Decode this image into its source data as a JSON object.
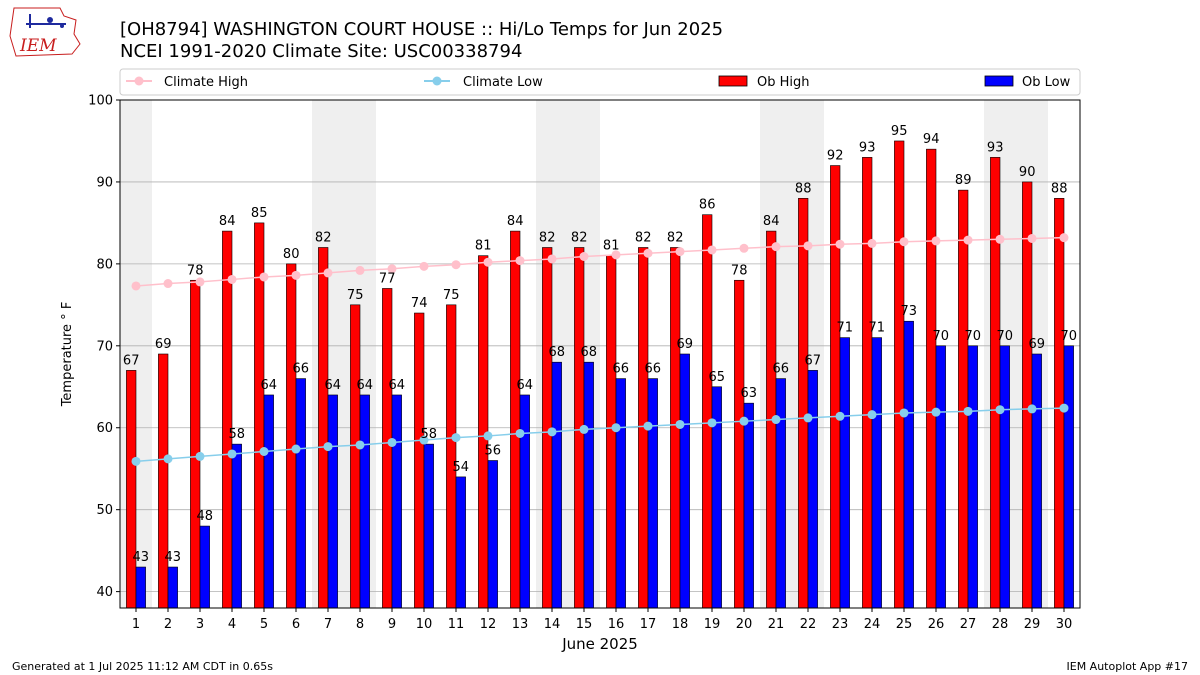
{
  "header": {
    "title_line1": "[OH8794] WASHINGTON COURT HOUSE :: Hi/Lo Temps for Jun 2025",
    "title_line2": "NCEI 1991-2020 Climate Site: USC00338794",
    "logo_text": "IEM"
  },
  "footer": {
    "generated": "Generated at 1 Jul 2025 11:12 AM CDT in 0.65s",
    "app": "IEM Autoplot App #17"
  },
  "colors": {
    "ob_high": "#ff0000",
    "ob_low": "#0000ff",
    "climate_high": "#ffc0cb",
    "climate_low": "#87ceeb",
    "weekend_shade": "#efefef",
    "grid": "#b0b0b0"
  },
  "chart_data": {
    "type": "bar",
    "xlabel": "June 2025",
    "ylabel": "Temperature ° F",
    "ylim": [
      38,
      100
    ],
    "yticks": [
      40,
      50,
      60,
      70,
      80,
      90,
      100
    ],
    "grid": "horizontal",
    "legend_placement": "top",
    "categories": [
      "1",
      "2",
      "3",
      "4",
      "5",
      "6",
      "7",
      "8",
      "9",
      "10",
      "11",
      "12",
      "13",
      "14",
      "15",
      "16",
      "17",
      "18",
      "19",
      "20",
      "21",
      "22",
      "23",
      "24",
      "25",
      "26",
      "27",
      "28",
      "29",
      "30"
    ],
    "weekend_days": [
      1,
      7,
      8,
      14,
      15,
      21,
      22,
      28,
      29
    ],
    "series": [
      {
        "name": "Ob High",
        "kind": "bar",
        "color": "#ff0000",
        "values": [
          67,
          69,
          78,
          84,
          85,
          80,
          82,
          75,
          77,
          74,
          75,
          81,
          84,
          82,
          82,
          81,
          82,
          82,
          86,
          78,
          84,
          88,
          92,
          93,
          95,
          94,
          89,
          93,
          90,
          88
        ]
      },
      {
        "name": "Ob Low",
        "kind": "bar",
        "color": "#0000ff",
        "values": [
          43,
          43,
          48,
          58,
          64,
          66,
          64,
          64,
          64,
          58,
          54,
          56,
          64,
          68,
          68,
          66,
          66,
          69,
          65,
          63,
          66,
          67,
          71,
          71,
          73,
          70,
          70,
          70,
          69,
          70
        ]
      },
      {
        "name": "Climate High",
        "kind": "line",
        "color": "#ffc0cb",
        "values": [
          77.3,
          77.6,
          77.8,
          78.1,
          78.4,
          78.6,
          78.9,
          79.2,
          79.4,
          79.7,
          79.9,
          80.2,
          80.4,
          80.6,
          80.9,
          81.1,
          81.3,
          81.5,
          81.7,
          81.9,
          82.1,
          82.2,
          82.4,
          82.5,
          82.7,
          82.8,
          82.9,
          83.0,
          83.1,
          83.2
        ]
      },
      {
        "name": "Climate Low",
        "kind": "line",
        "color": "#87ceeb",
        "values": [
          55.9,
          56.2,
          56.5,
          56.8,
          57.1,
          57.4,
          57.7,
          57.9,
          58.2,
          58.5,
          58.8,
          59.0,
          59.3,
          59.5,
          59.8,
          60.0,
          60.2,
          60.4,
          60.6,
          60.8,
          61.0,
          61.2,
          61.4,
          61.6,
          61.8,
          61.9,
          62.0,
          62.2,
          62.3,
          62.4
        ]
      }
    ]
  }
}
